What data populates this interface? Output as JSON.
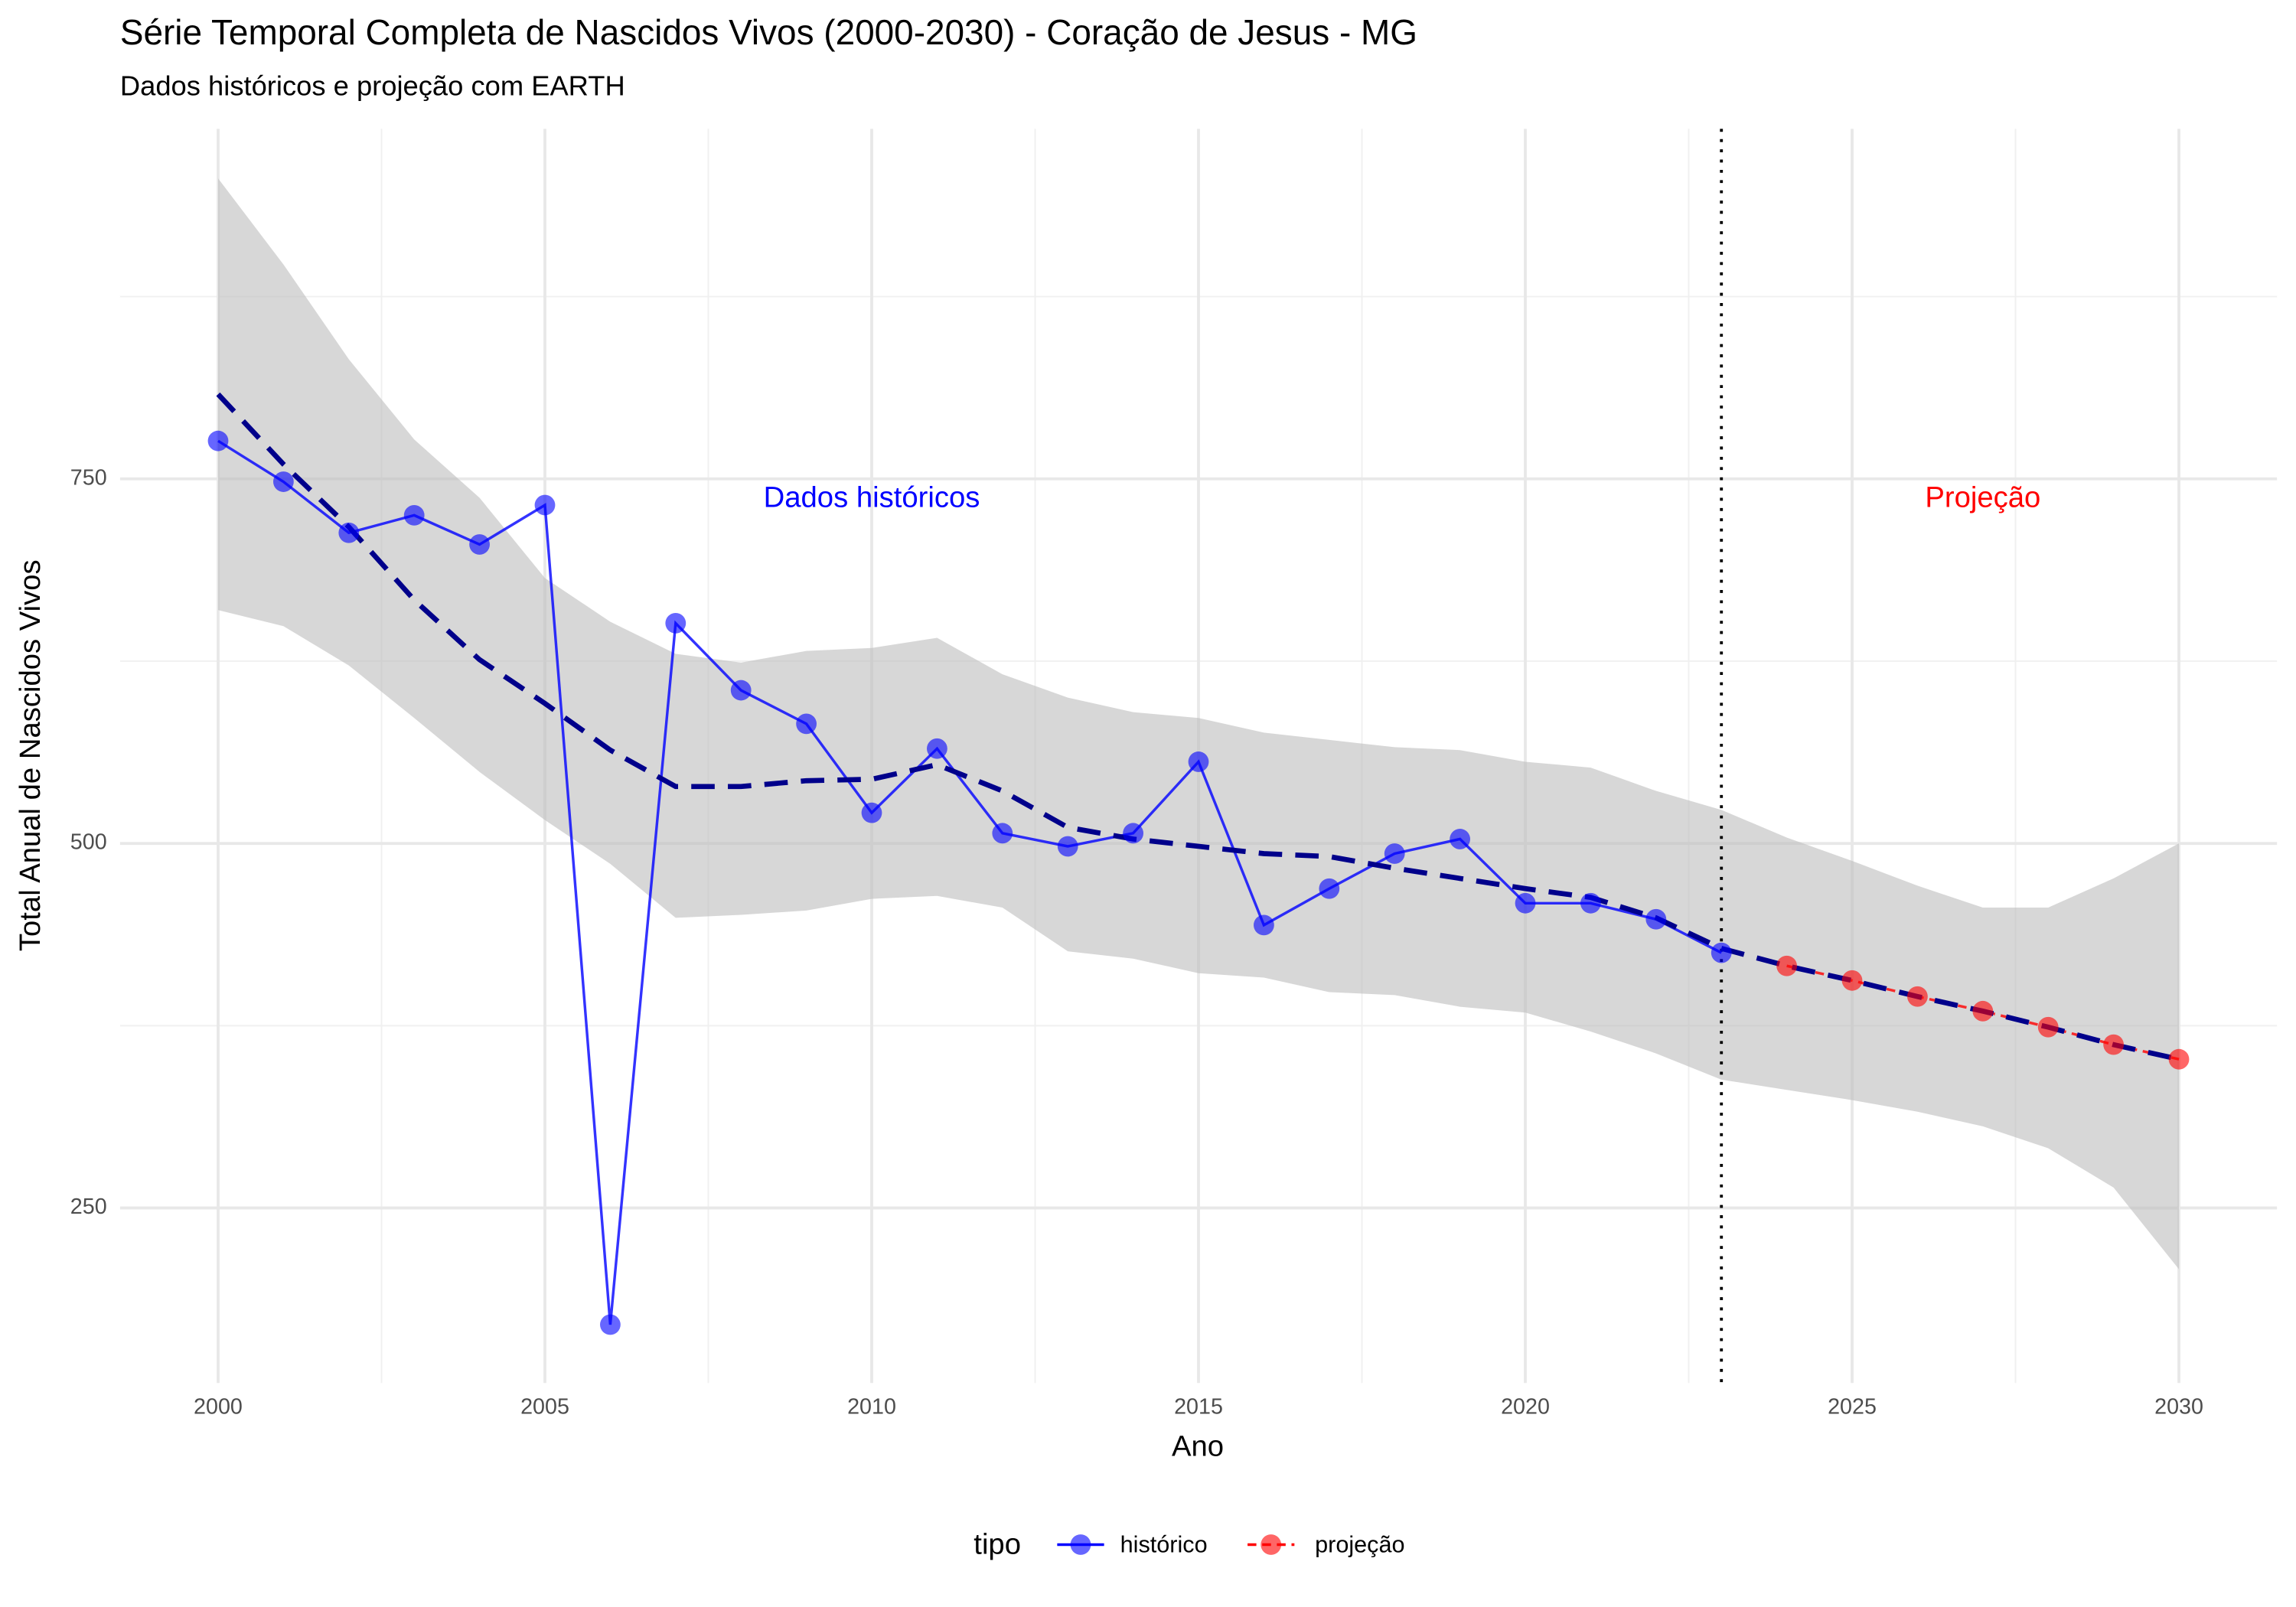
{
  "chart_data": {
    "type": "line",
    "title": "Série Temporal Completa de Nascidos Vivos (2000-2030) -  Coração de Jesus - MG",
    "subtitle": "Dados históricos e projeção com EARTH",
    "x_label": "Ano",
    "y_label": "Total Anual de Nascidos Vivos",
    "xlim": [
      1998.5,
      2031.5
    ],
    "ylim": [
      130,
      990
    ],
    "xticks": [
      2000,
      2005,
      2010,
      2015,
      2020,
      2025,
      2030
    ],
    "yticks": [
      250,
      500,
      750
    ],
    "x_minor_ticks": [
      2002.5,
      2007.5,
      2012.5,
      2017.5,
      2022.5,
      2027.5
    ],
    "y_minor_ticks": [
      375,
      625,
      875
    ],
    "grid": true,
    "legend_title": "tipo",
    "legend_position": "bottom",
    "vline": 2023,
    "annotations": [
      {
        "text": "Dados históricos",
        "x": 2010,
        "y": 736,
        "color": "#0000ff"
      },
      {
        "text": "Projeção",
        "x": 2027,
        "y": 736,
        "color": "#ff0000"
      }
    ],
    "series": [
      {
        "name": "histórico",
        "color": "#0000ff",
        "dashed": false,
        "x": [
          2000,
          2001,
          2002,
          2003,
          2004,
          2005,
          2006,
          2007,
          2008,
          2009,
          2010,
          2011,
          2012,
          2013,
          2014,
          2015,
          2016,
          2017,
          2018,
          2019,
          2020,
          2021,
          2022,
          2023
        ],
        "values": [
          776,
          748,
          713,
          725,
          705,
          732,
          170,
          651,
          605,
          582,
          521,
          565,
          507,
          498,
          507,
          556,
          444,
          469,
          493,
          503,
          459,
          459,
          448,
          425
        ]
      },
      {
        "name": "projeção",
        "color": "#ff0000",
        "dashed": true,
        "x": [
          2024,
          2025,
          2026,
          2027,
          2028,
          2029,
          2030
        ],
        "values": [
          416,
          406,
          395,
          385,
          374,
          362,
          352
        ]
      }
    ],
    "smooth": {
      "line_color": "#00008b",
      "fill_color": "#bdbdbd",
      "x": [
        2000,
        2001,
        2002,
        2003,
        2004,
        2005,
        2006,
        2007,
        2008,
        2009,
        2010,
        2011,
        2012,
        2013,
        2014,
        2015,
        2016,
        2017,
        2018,
        2019,
        2020,
        2021,
        2022,
        2023,
        2024,
        2025,
        2026,
        2027,
        2028,
        2029,
        2030
      ],
      "fit": [
        808,
        760,
        717,
        667,
        626,
        596,
        564,
        539,
        539,
        543,
        544,
        554,
        536,
        511,
        503,
        498,
        493,
        491,
        483,
        476,
        469,
        463,
        449,
        428,
        416,
        406,
        395,
        385,
        374,
        362,
        352
      ],
      "upper": [
        956,
        897,
        832,
        777,
        737,
        682,
        652,
        630,
        624,
        632,
        634,
        641,
        616,
        600,
        590,
        586,
        576,
        571,
        566,
        564,
        556,
        552,
        536,
        523,
        504,
        488,
        471,
        456,
        456,
        476,
        500
      ],
      "lower": [
        660,
        649,
        622,
        586,
        549,
        516,
        486,
        449,
        451,
        454,
        462,
        464,
        456,
        426,
        421,
        411,
        408,
        398,
        396,
        388,
        384,
        371,
        356,
        338,
        331,
        324,
        316,
        306,
        291,
        264,
        208
      ]
    }
  }
}
